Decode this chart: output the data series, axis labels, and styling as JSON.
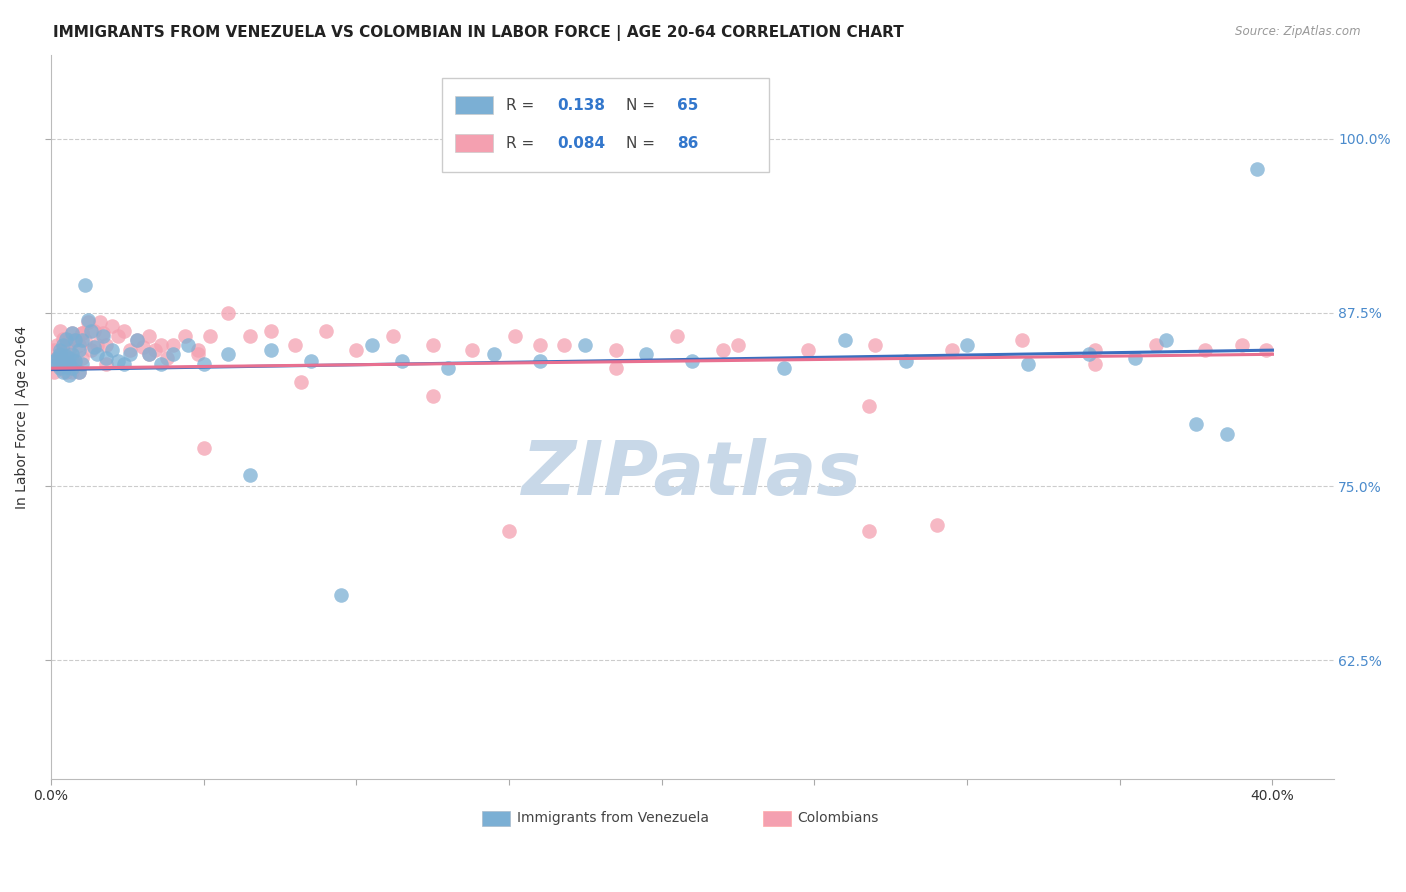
{
  "title": "IMMIGRANTS FROM VENEZUELA VS COLOMBIAN IN LABOR FORCE | AGE 20-64 CORRELATION CHART",
  "source": "Source: ZipAtlas.com",
  "ylabel": "In Labor Force | Age 20-64",
  "ytick_labels": [
    "62.5%",
    "75.0%",
    "87.5%",
    "100.0%"
  ],
  "ytick_values": [
    0.625,
    0.75,
    0.875,
    1.0
  ],
  "xlim": [
    0.0,
    0.42
  ],
  "ylim": [
    0.54,
    1.06
  ],
  "venezuela_R": 0.138,
  "venezuela_N": 65,
  "colombia_R": 0.084,
  "colombia_N": 86,
  "venezuela_color": "#7BAFD4",
  "colombia_color": "#F4A0B0",
  "venezuela_line_color": "#3B6FBF",
  "colombia_line_color": "#E87090",
  "background_color": "#FFFFFF",
  "watermark_text": "ZIPatlas",
  "watermark_color": "#C8D8E8",
  "title_fontsize": 11,
  "right_tick_color": "#4B8BCC",
  "venezuela_x": [
    0.001,
    0.002,
    0.002,
    0.003,
    0.003,
    0.003,
    0.004,
    0.004,
    0.004,
    0.005,
    0.005,
    0.005,
    0.006,
    0.006,
    0.006,
    0.007,
    0.007,
    0.007,
    0.008,
    0.008,
    0.009,
    0.009,
    0.01,
    0.01,
    0.011,
    0.012,
    0.013,
    0.014,
    0.015,
    0.017,
    0.018,
    0.02,
    0.022,
    0.024,
    0.026,
    0.028,
    0.032,
    0.036,
    0.04,
    0.045,
    0.05,
    0.058,
    0.065,
    0.072,
    0.085,
    0.095,
    0.105,
    0.115,
    0.13,
    0.145,
    0.16,
    0.175,
    0.195,
    0.21,
    0.24,
    0.26,
    0.28,
    0.3,
    0.32,
    0.34,
    0.355,
    0.365,
    0.375,
    0.385,
    0.395
  ],
  "venezuela_y": [
    0.84,
    0.838,
    0.842,
    0.835,
    0.845,
    0.848,
    0.832,
    0.84,
    0.852,
    0.836,
    0.844,
    0.856,
    0.838,
    0.842,
    0.83,
    0.86,
    0.845,
    0.835,
    0.855,
    0.84,
    0.848,
    0.832,
    0.838,
    0.855,
    0.895,
    0.87,
    0.862,
    0.85,
    0.845,
    0.858,
    0.842,
    0.848,
    0.84,
    0.838,
    0.845,
    0.855,
    0.845,
    0.838,
    0.845,
    0.852,
    0.838,
    0.845,
    0.758,
    0.848,
    0.84,
    0.672,
    0.852,
    0.84,
    0.835,
    0.845,
    0.84,
    0.852,
    0.845,
    0.84,
    0.835,
    0.855,
    0.84,
    0.852,
    0.838,
    0.845,
    0.842,
    0.855,
    0.795,
    0.788,
    0.978
  ],
  "colombia_x": [
    0.001,
    0.001,
    0.002,
    0.002,
    0.003,
    0.003,
    0.004,
    0.004,
    0.004,
    0.005,
    0.005,
    0.005,
    0.006,
    0.006,
    0.007,
    0.007,
    0.007,
    0.008,
    0.008,
    0.009,
    0.009,
    0.01,
    0.01,
    0.011,
    0.012,
    0.013,
    0.014,
    0.015,
    0.016,
    0.017,
    0.018,
    0.02,
    0.022,
    0.024,
    0.026,
    0.028,
    0.03,
    0.032,
    0.034,
    0.036,
    0.038,
    0.04,
    0.044,
    0.048,
    0.052,
    0.058,
    0.065,
    0.072,
    0.08,
    0.09,
    0.1,
    0.112,
    0.125,
    0.138,
    0.152,
    0.168,
    0.185,
    0.205,
    0.225,
    0.248,
    0.27,
    0.295,
    0.318,
    0.342,
    0.362,
    0.378,
    0.39,
    0.398,
    0.268,
    0.185,
    0.125,
    0.082,
    0.048,
    0.032,
    0.018,
    0.01,
    0.006,
    0.003,
    0.002,
    0.268,
    0.342,
    0.05,
    0.16,
    0.22,
    0.29,
    0.15
  ],
  "colombia_y": [
    0.848,
    0.832,
    0.84,
    0.852,
    0.836,
    0.844,
    0.848,
    0.838,
    0.856,
    0.842,
    0.852,
    0.832,
    0.848,
    0.838,
    0.86,
    0.842,
    0.832,
    0.855,
    0.838,
    0.852,
    0.832,
    0.86,
    0.842,
    0.855,
    0.868,
    0.848,
    0.862,
    0.852,
    0.868,
    0.86,
    0.852,
    0.865,
    0.858,
    0.862,
    0.848,
    0.855,
    0.85,
    0.858,
    0.848,
    0.852,
    0.842,
    0.852,
    0.858,
    0.848,
    0.858,
    0.875,
    0.858,
    0.862,
    0.852,
    0.862,
    0.848,
    0.858,
    0.852,
    0.848,
    0.858,
    0.852,
    0.848,
    0.858,
    0.852,
    0.848,
    0.852,
    0.848,
    0.855,
    0.848,
    0.852,
    0.848,
    0.852,
    0.848,
    0.808,
    0.835,
    0.815,
    0.825,
    0.845,
    0.845,
    0.838,
    0.86,
    0.855,
    0.862,
    0.842,
    0.718,
    0.838,
    0.778,
    0.852,
    0.848,
    0.722,
    0.718
  ]
}
